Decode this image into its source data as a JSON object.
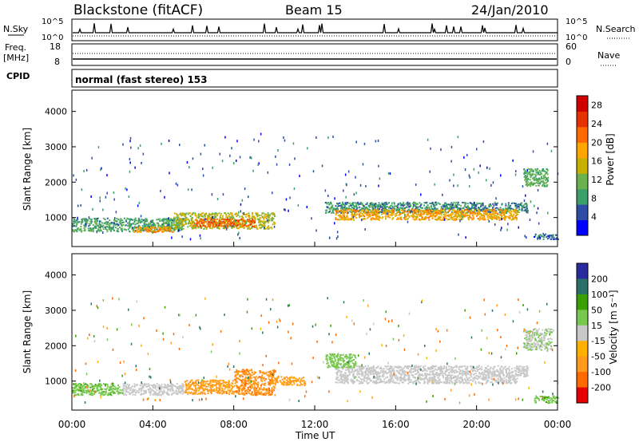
{
  "header": {
    "station": "Blackstone (fitACF)",
    "beam": "Beam 15",
    "date": "24/Jan/2010"
  },
  "noise_panel": {
    "left_label": "N.Sky",
    "left_ticks": [
      "10^5",
      "10^0"
    ],
    "right_ticks": [
      "10^5",
      "10^0"
    ],
    "right_label": "N.Search"
  },
  "freq_panel": {
    "left_label_line1": "Freq.",
    "left_label_line2": "[MHz]",
    "left_ticks": [
      "18",
      "8"
    ],
    "right_ticks": [
      "60",
      "0"
    ],
    "right_label": "Nave"
  },
  "cpid": {
    "label": "CPID",
    "text": "normal (fast stereo) 153"
  },
  "colors": {
    "power": [
      "#0000ff",
      "#2e4ca6",
      "#3aa06a",
      "#6ab24e",
      "#c8b000",
      "#ffa500",
      "#ff6a00",
      "#e63200",
      "#d00000"
    ],
    "velocity": [
      "#e60000",
      "#ff6a00",
      "#ff9a1e",
      "#ffb000",
      "#c8c8c8",
      "#78c850",
      "#3aa000",
      "#2a6f6a",
      "#2a2aa0"
    ]
  },
  "chart_data": [
    {
      "type": "heatmap",
      "name": "power",
      "ylabel": "Slant Range [km]",
      "yticks": [
        1000,
        2000,
        3000,
        4000
      ],
      "ylim": [
        180,
        4600
      ],
      "xlim": [
        0,
        24
      ],
      "colorbar_label": "Power [dB]",
      "colorbar_ticks": [
        4,
        8,
        12,
        16,
        20,
        24,
        28
      ],
      "colorbar_range": [
        0,
        30
      ],
      "features": [
        {
          "t0": 0.0,
          "t1": 5.5,
          "r0": 620,
          "r1": 1000,
          "level": 9
        },
        {
          "t0": 3.0,
          "t1": 5.0,
          "r0": 600,
          "r1": 760,
          "level": 19
        },
        {
          "t0": 5.0,
          "t1": 10.0,
          "r0": 700,
          "r1": 1150,
          "level": 14
        },
        {
          "t0": 6.0,
          "t1": 9.0,
          "r0": 760,
          "r1": 980,
          "level": 22
        },
        {
          "t0": 12.5,
          "t1": 22.5,
          "r0": 1150,
          "r1": 1450,
          "level": 8
        },
        {
          "t0": 13.0,
          "t1": 22.0,
          "r0": 950,
          "r1": 1250,
          "level": 18
        },
        {
          "t0": 22.3,
          "t1": 23.5,
          "r0": 1900,
          "r1": 2400,
          "level": 10
        },
        {
          "t0": 22.8,
          "t1": 24.0,
          "r0": 400,
          "r1": 550,
          "level": 6
        }
      ]
    },
    {
      "type": "heatmap",
      "name": "velocity",
      "ylabel": "Slant Range [km]",
      "xlabel": "Time UT",
      "xticks": [
        "00:00",
        "04:00",
        "08:00",
        "12:00",
        "16:00",
        "20:00",
        "00:00"
      ],
      "yticks": [
        1000,
        2000,
        3000,
        4000
      ],
      "ylim": [
        180,
        4600
      ],
      "xlim": [
        0,
        24
      ],
      "colorbar_label": "Velocity [m s⁻¹]",
      "colorbar_ticks": [
        "200",
        "100",
        "50",
        "15",
        "-15",
        "-50",
        "-100",
        "-200"
      ],
      "features": [
        {
          "t0": 0.0,
          "t1": 2.5,
          "r0": 620,
          "r1": 950,
          "v": 40
        },
        {
          "t0": 2.5,
          "t1": 5.5,
          "r0": 620,
          "r1": 950,
          "v": 0
        },
        {
          "t0": 5.5,
          "t1": 8.0,
          "r0": 650,
          "r1": 1050,
          "v": -60
        },
        {
          "t0": 8.0,
          "t1": 10.0,
          "r0": 620,
          "r1": 1350,
          "v": -90
        },
        {
          "t0": 10.0,
          "t1": 11.5,
          "r0": 900,
          "r1": 1150,
          "v": -60
        },
        {
          "t0": 13.0,
          "t1": 22.5,
          "r0": 1150,
          "r1": 1450,
          "v": 0
        },
        {
          "t0": 13.0,
          "t1": 22.0,
          "r0": 950,
          "r1": 1150,
          "v": 0
        },
        {
          "t0": 12.5,
          "t1": 14.0,
          "r0": 1400,
          "r1": 1800,
          "v": 30
        },
        {
          "t0": 22.3,
          "t1": 23.7,
          "r0": 1900,
          "r1": 2500,
          "v": 10
        },
        {
          "t0": 22.8,
          "t1": 24.0,
          "r0": 400,
          "r1": 600,
          "v": 40
        }
      ]
    }
  ]
}
